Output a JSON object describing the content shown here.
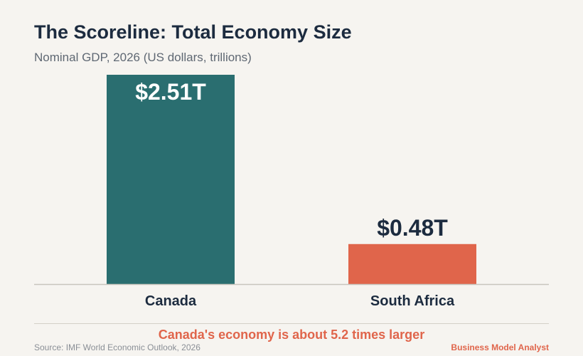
{
  "title": "The Scoreline: Total Economy Size",
  "subtitle": "Nominal GDP, 2026 (US dollars, trillions)",
  "callout": "Canada's economy is about 5.2 times larger",
  "source": "Source: IMF World Economic Outlook, 2026",
  "brand": "Business Model Analyst",
  "colors": {
    "background": "#f6f4f0",
    "canada": "#2a6e70",
    "south_africa": "#e0654b",
    "text_dark": "#1c2b3f",
    "accent": "#e0654b"
  },
  "chart_data": {
    "type": "bar",
    "title": "The Scoreline: Total Economy Size",
    "subtitle": "Nominal GDP, 2026 (US dollars, trillions)",
    "categories": [
      "Canada",
      "South Africa"
    ],
    "values": [
      2.51,
      0.48
    ],
    "data_labels": [
      "$2.51T",
      "$0.48T"
    ],
    "colors": [
      "#2a6e70",
      "#e0654b"
    ],
    "ylim": [
      0,
      2.51
    ],
    "grid": false,
    "xlabel": "",
    "ylabel": ""
  }
}
